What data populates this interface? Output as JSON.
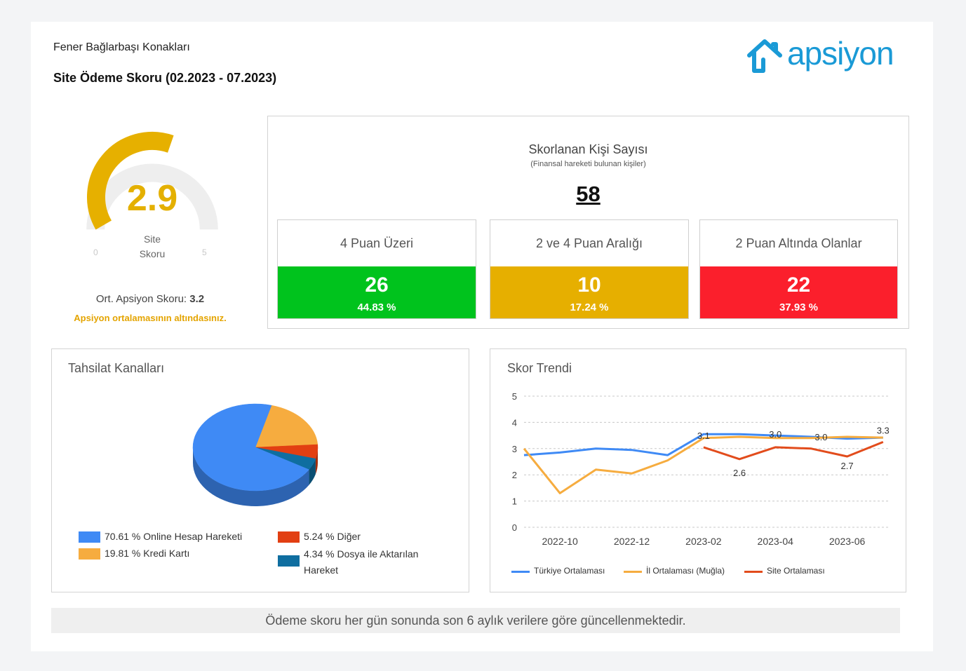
{
  "header": {
    "site_name": "Fener Bağlarbaşı Konakları",
    "report_title": "Site Ödeme Skoru (02.2023 - 07.2023)",
    "logo_text": "apsiyon"
  },
  "gauge": {
    "value": "2.9",
    "value_num": 2.9,
    "max_num": 5,
    "label_line1": "Site",
    "label_line2": "Skoru",
    "min_label": "0",
    "max_label": "5",
    "avg_label": "Ort. Apsiyon Skoru:",
    "avg_value": "3.2",
    "warning": "Apsiyon ortalamasının altındasınız."
  },
  "scored": {
    "title": "Skorlanan Kişi Sayısı",
    "subtitle": "(Finansal hareketi bulunan kişiler)",
    "total": "58",
    "categories": [
      {
        "label": "4 Puan Üzeri",
        "count": "26",
        "percent": "44.83 %",
        "color": "#00c31d"
      },
      {
        "label": "2 ve 4 Puan Aralığı",
        "count": "10",
        "percent": "17.24 %",
        "color": "#e6af00"
      },
      {
        "label": "2 Puan Altında Olanlar",
        "count": "22",
        "percent": "37.93 %",
        "color": "#fb1f2c"
      }
    ]
  },
  "channels": {
    "title": "Tahsilat Kanalları",
    "legend": [
      {
        "label": "70.61 % Online Hesap Hareketi",
        "color": "#3f8af5"
      },
      {
        "label": "19.81 % Kredi Kartı",
        "color": "#f6ac3f"
      },
      {
        "label": "5.24 % Diğer",
        "color": "#e23f12"
      },
      {
        "label_line1": "4.34 % Dosya ile Aktarılan",
        "label_line2": "Hareket",
        "color": "#0f6ea0"
      }
    ]
  },
  "trend": {
    "title": "Skor Trendi",
    "legend": [
      {
        "label": "Türkiye Ortalaması",
        "color": "#3f8af5"
      },
      {
        "label": "İl Ortalaması (Muğla)",
        "color": "#f6ac3f"
      },
      {
        "label": "Site Ortalaması",
        "color": "#e24c1c"
      }
    ]
  },
  "chart_data": [
    {
      "type": "pie",
      "title": "Tahsilat Kanalları",
      "categories": [
        "Online Hesap Hareketi",
        "Kredi Kartı",
        "Diğer",
        "Dosya ile Aktarılan Hareket"
      ],
      "values": [
        70.61,
        19.81,
        5.24,
        4.34
      ],
      "colors": [
        "#3f8af5",
        "#f6ac3f",
        "#e23f12",
        "#0f6ea0"
      ]
    },
    {
      "type": "line",
      "title": "Skor Trendi",
      "xlabel": "",
      "ylabel": "",
      "ylim": [
        0,
        5
      ],
      "yticks": [
        0,
        1,
        2,
        3,
        4,
        5
      ],
      "xlim": [
        0,
        10.2
      ],
      "xtick_positions": [
        1,
        3,
        5,
        7,
        9
      ],
      "xtick_labels": [
        "2022-10",
        "2022-12",
        "2023-02",
        "2023-04",
        "2023-06"
      ],
      "series": [
        {
          "name": "Türkiye Ortalaması",
          "color": "#3f8af5",
          "x": [
            0,
            1,
            2,
            3,
            4,
            5,
            6,
            7,
            8,
            9,
            10
          ],
          "y": [
            2.75,
            2.85,
            3.0,
            2.95,
            2.75,
            3.55,
            3.55,
            3.5,
            3.45,
            3.38,
            3.42
          ]
        },
        {
          "name": "İl Ortalaması (Muğla)",
          "color": "#f6ac3f",
          "x": [
            0,
            1,
            2,
            3,
            4,
            5,
            6,
            7,
            8,
            9,
            10
          ],
          "y": [
            3.0,
            1.3,
            2.2,
            2.05,
            2.55,
            3.4,
            3.45,
            3.4,
            3.4,
            3.45,
            3.42
          ]
        },
        {
          "name": "Site Ortalaması",
          "color": "#e24c1c",
          "x": [
            5,
            6,
            7,
            8,
            9,
            10
          ],
          "y": [
            3.05,
            2.6,
            3.05,
            3.0,
            2.7,
            3.25
          ]
        }
      ],
      "annotations": [
        {
          "text": "3.1",
          "x": 5,
          "y": 3.05
        },
        {
          "text": "2.6",
          "x": 6,
          "y": 2.6
        },
        {
          "text": "3.0",
          "x": 7,
          "y": 3.05
        },
        {
          "text": "3.0",
          "x": 8,
          "y": 3.0
        },
        {
          "text": "2.7",
          "x": 9,
          "y": 2.7
        },
        {
          "text": "3.3",
          "x": 10,
          "y": 3.25
        }
      ]
    }
  ]
}
